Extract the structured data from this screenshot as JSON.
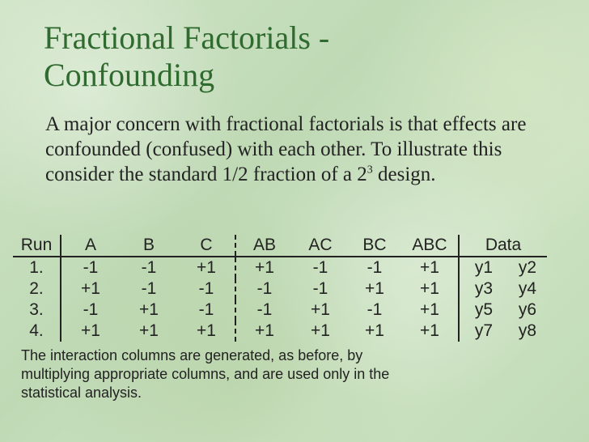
{
  "title_line1": "Fractional Factorials -",
  "title_line2": "Confounding",
  "body_before_sup": "A major concern with fractional factorials is that effects are confounded (confused) with each other. To illustrate this consider the standard 1/2 fraction of a 2",
  "body_sup": "3",
  "body_after_sup": " design.",
  "table": {
    "headers": {
      "run": "Run",
      "a": "A",
      "b": "B",
      "c": "C",
      "ab": "AB",
      "ac": "AC",
      "bc": "BC",
      "abc": "ABC",
      "data": "Data"
    },
    "rows": [
      {
        "run": "1.",
        "a": "-1",
        "b": "-1",
        "c": "+1",
        "ab": "+1",
        "ac": "-1",
        "bc": "-1",
        "abc": "+1",
        "d1": "y1",
        "d2": "y2"
      },
      {
        "run": "2.",
        "a": "+1",
        "b": "-1",
        "c": "-1",
        "ab": "-1",
        "ac": "-1",
        "bc": "+1",
        "abc": "+1",
        "d1": "y3",
        "d2": "y4"
      },
      {
        "run": "3.",
        "a": "-1",
        "b": "+1",
        "c": "-1",
        "ab": "-1",
        "ac": "+1",
        "bc": "-1",
        "abc": "+1",
        "d1": "y5",
        "d2": "y6"
      },
      {
        "run": "4.",
        "a": "+1",
        "b": "+1",
        "c": "+1",
        "ab": "+1",
        "ac": "+1",
        "bc": "+1",
        "abc": "+1",
        "d1": "y7",
        "d2": "y8"
      }
    ]
  },
  "footnote": "The interaction columns are generated, as before, by multiplying appropriate columns, and are used only in the statistical analysis.",
  "colors": {
    "title": "#2f6a2f",
    "text": "#222222",
    "background_base": "#c8dfc0"
  },
  "fonts": {
    "title_family": "Times New Roman",
    "title_size_pt": 30,
    "body_family": "Times New Roman",
    "body_size_pt": 19,
    "table_family": "Arial",
    "table_size_pt": 16,
    "footnote_family": "Arial",
    "footnote_size_pt": 13
  }
}
